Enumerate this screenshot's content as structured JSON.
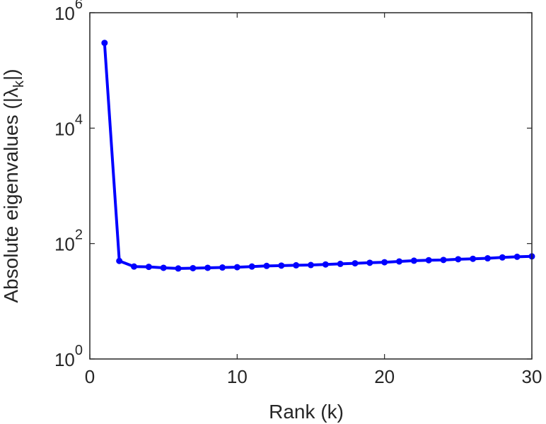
{
  "chart_data": {
    "type": "line",
    "title": "",
    "xlabel": "Rank (k)",
    "ylabel": {
      "prefix": "Absolute eigenvalues (|",
      "symbol": "λ",
      "subscript": "k",
      "suffix": "|)"
    },
    "xlim": [
      0,
      30
    ],
    "ylim": [
      1,
      1000000
    ],
    "yscale": "log",
    "grid": false,
    "legend": "none",
    "x_ticks": [
      "0",
      "10",
      "20",
      "30"
    ],
    "y_ticks": [
      {
        "base": "10",
        "exp": "0"
      },
      {
        "base": "10",
        "exp": "2"
      },
      {
        "base": "10",
        "exp": "4"
      },
      {
        "base": "10",
        "exp": "6"
      }
    ],
    "series": [
      {
        "color": "#0000ff",
        "marker": "circle",
        "x": [
          1,
          2,
          3,
          4,
          5,
          6,
          7,
          8,
          9,
          10,
          11,
          12,
          13,
          14,
          15,
          16,
          17,
          18,
          19,
          20,
          21,
          22,
          23,
          24,
          25,
          26,
          27,
          28,
          29,
          30
        ],
        "y": [
          300000,
          50,
          40,
          39.5,
          38,
          37,
          37.5,
          38,
          38.5,
          39,
          40,
          41,
          41.5,
          42,
          42.5,
          43.5,
          44.5,
          45.5,
          46.5,
          47.5,
          49,
          50.5,
          51.5,
          52,
          53.5,
          54.5,
          55.5,
          57.5,
          59,
          60
        ]
      }
    ]
  }
}
